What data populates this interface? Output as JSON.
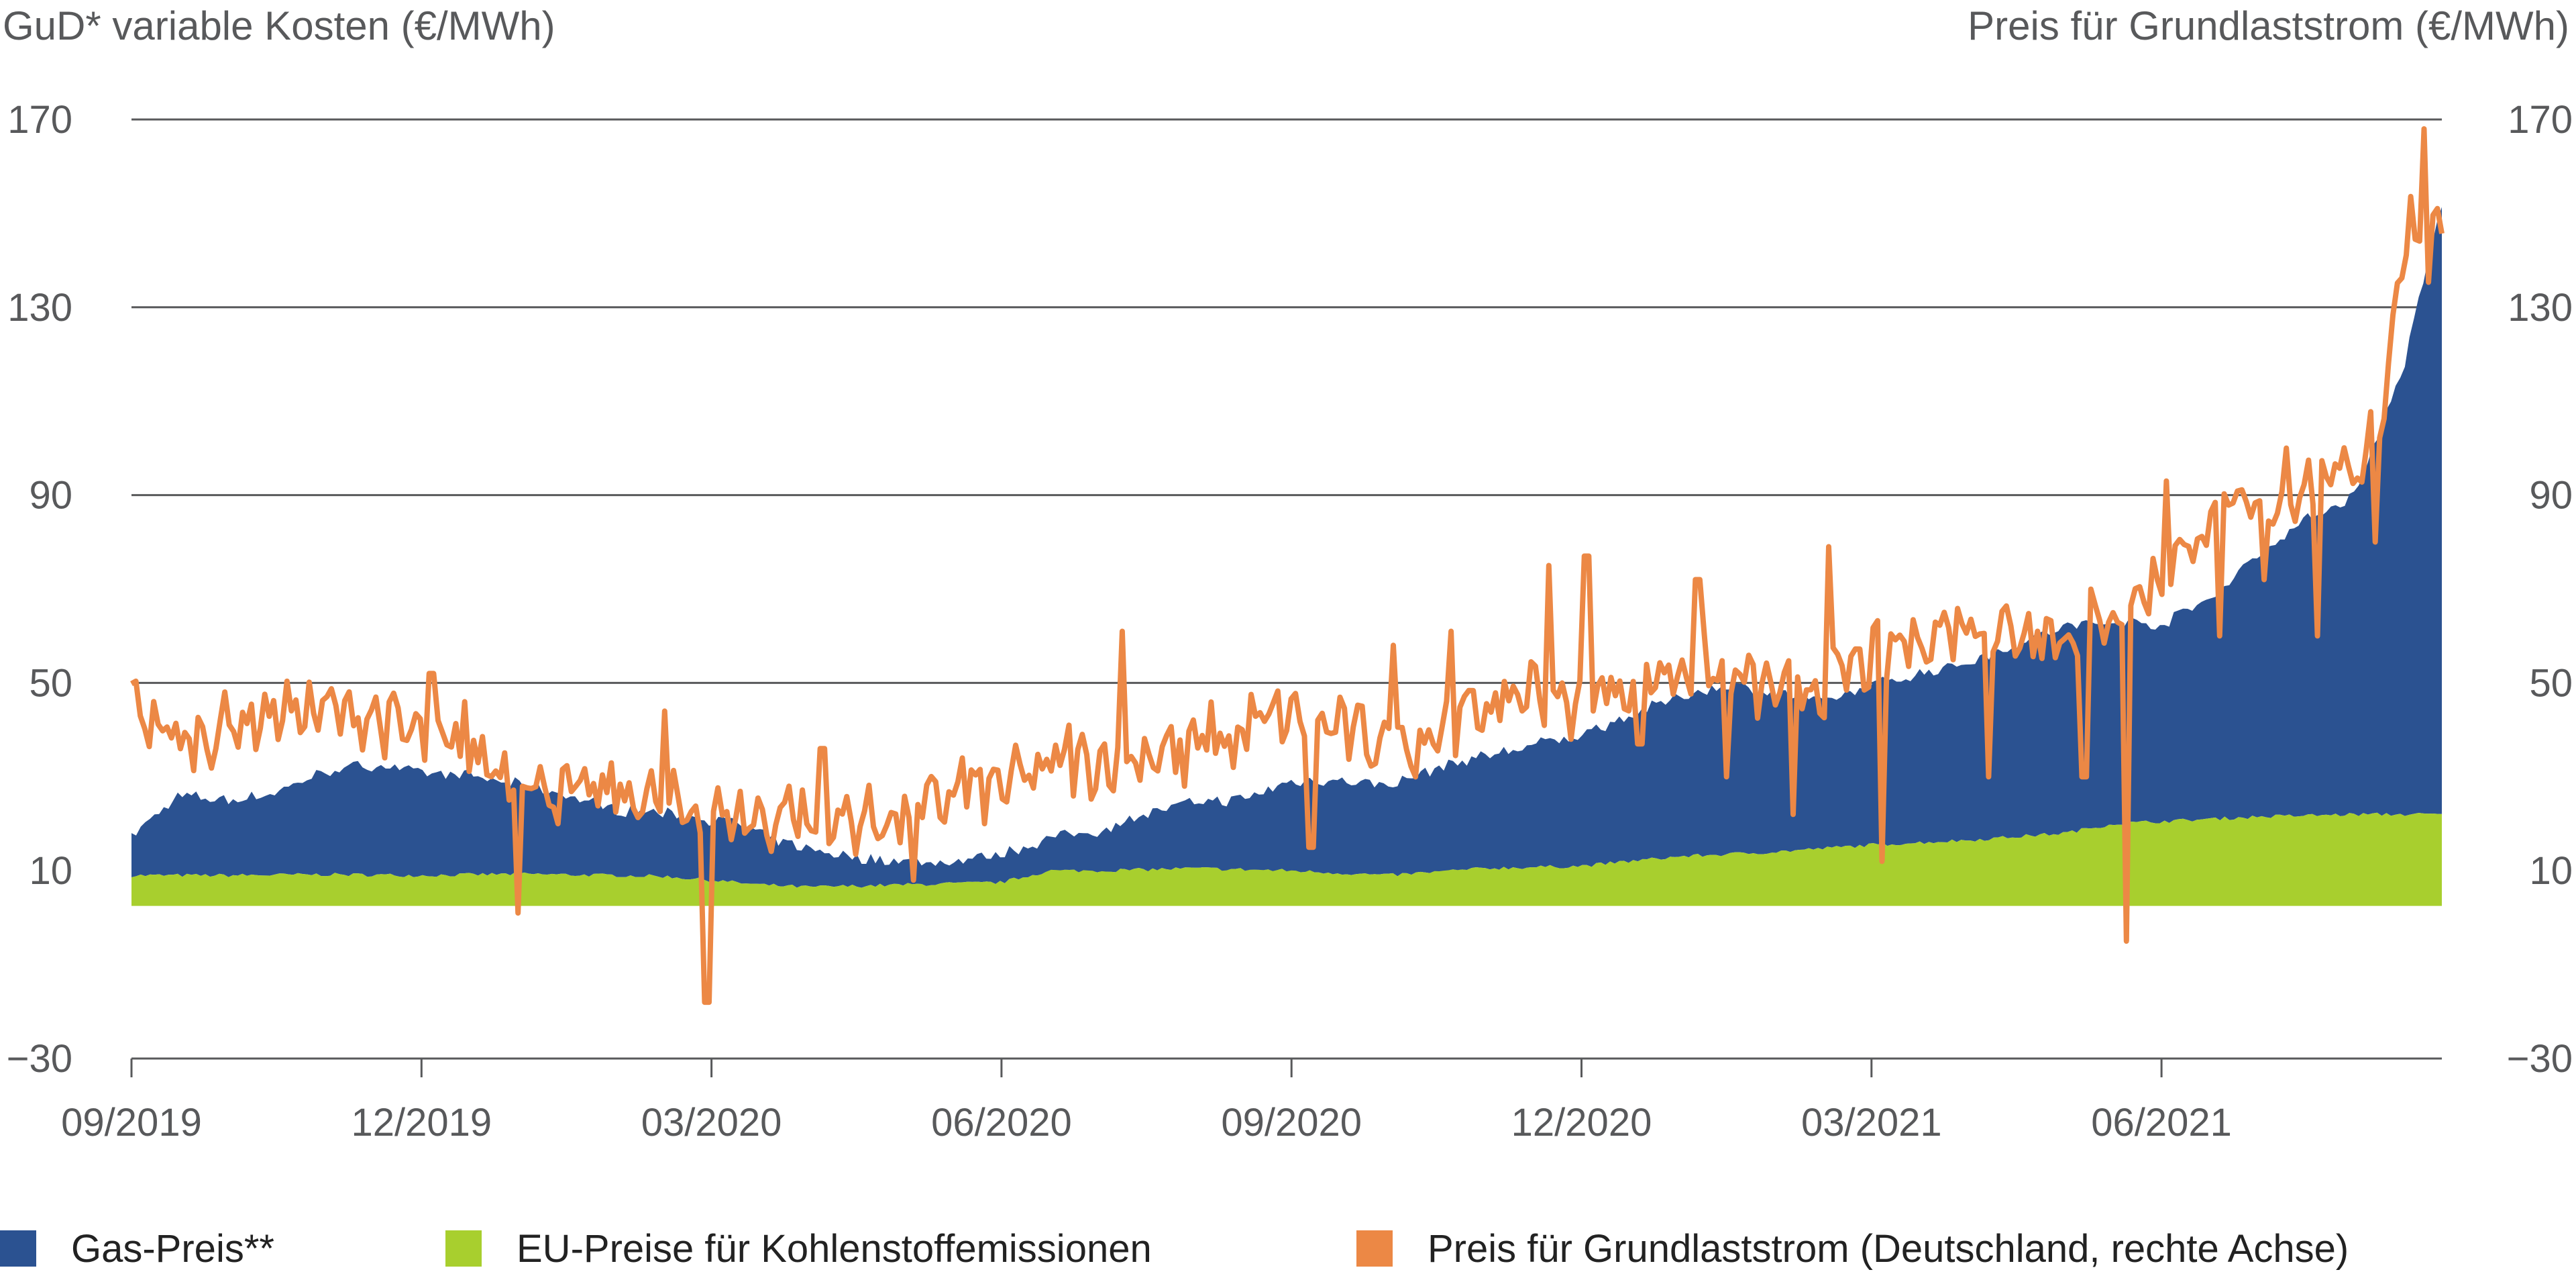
{
  "chart_data": {
    "type": "area",
    "title": "",
    "left_axis_title": "GuD* variable Kosten (€/MWh)",
    "right_axis_title": "Preis für Grundlaststrom (€/MWh)",
    "y_ticks": [
      170,
      130,
      90,
      50,
      10,
      -30
    ],
    "y_tick_labels": [
      "170",
      "130",
      "90",
      "50",
      "10",
      "−30"
    ],
    "ylim": [
      -30,
      170
    ],
    "x_ticks": [
      "09/2019",
      "12/2019",
      "03/2020",
      "06/2020",
      "09/2020",
      "12/2020",
      "03/2021",
      "06/2021"
    ],
    "x_tick_month_index": [
      0,
      3,
      6,
      9,
      12,
      15,
      18,
      21
    ],
    "x_range_months": [
      0,
      23.9
    ],
    "series": [
      {
        "name": "Gas-Preis**",
        "kind": "stacked-area",
        "color": "#2b5291",
        "description": "stacked on top of emission prices; points are [month index, value in €/MWh]",
        "points": [
          [
            0,
            8.5
          ],
          [
            0.5,
            17
          ],
          [
            1,
            16
          ],
          [
            1.5,
            17.5
          ],
          [
            2,
            22
          ],
          [
            2.5,
            23.5
          ],
          [
            3,
            22
          ],
          [
            3.5,
            21
          ],
          [
            4,
            19
          ],
          [
            4.5,
            17
          ],
          [
            5,
            14
          ],
          [
            5.5,
            13.5
          ],
          [
            6,
            13
          ],
          [
            6.3,
            12.5
          ],
          [
            6.6,
            10
          ],
          [
            7,
            8
          ],
          [
            7.5,
            6
          ],
          [
            8,
            5
          ],
          [
            8.5,
            4.5
          ],
          [
            9,
            6
          ],
          [
            9.5,
            7
          ],
          [
            10,
            8.5
          ],
          [
            10.5,
            12
          ],
          [
            11,
            14
          ],
          [
            11.5,
            15
          ],
          [
            12,
            19
          ],
          [
            12.5,
            20
          ],
          [
            13,
            19
          ],
          [
            13.5,
            22
          ],
          [
            14,
            24
          ],
          [
            14.5,
            26
          ],
          [
            15,
            28
          ],
          [
            15.5,
            31
          ],
          [
            16,
            34
          ],
          [
            16.5,
            36
          ],
          [
            17,
            34
          ],
          [
            17.5,
            31
          ],
          [
            18,
            34
          ],
          [
            18.5,
            36
          ],
          [
            19,
            38
          ],
          [
            19.5,
            41
          ],
          [
            20,
            44
          ],
          [
            20.5,
            43
          ],
          [
            21,
            42
          ],
          [
            21.5,
            47
          ],
          [
            22,
            56
          ],
          [
            22.5,
            63
          ],
          [
            23,
            68
          ],
          [
            23.5,
            95
          ],
          [
            23.9,
            130
          ]
        ]
      },
      {
        "name": "EU-Preise für Kohlenstoffemissionen",
        "kind": "base-area",
        "color": "#a8cf2e",
        "points": [
          [
            0,
            9
          ],
          [
            1,
            9
          ],
          [
            2,
            9.2
          ],
          [
            3,
            9
          ],
          [
            4,
            9.3
          ],
          [
            5,
            9
          ],
          [
            5.5,
            8.8
          ],
          [
            6,
            8
          ],
          [
            6.5,
            7
          ],
          [
            7,
            6.5
          ],
          [
            8,
            7
          ],
          [
            9,
            7.5
          ],
          [
            9.5,
            10
          ],
          [
            10,
            10
          ],
          [
            11,
            10.5
          ],
          [
            12,
            10
          ],
          [
            13,
            9
          ],
          [
            14,
            10.5
          ],
          [
            15,
            11
          ],
          [
            16,
            13
          ],
          [
            16.5,
            13.5
          ],
          [
            17,
            14
          ],
          [
            18,
            15.5
          ],
          [
            19,
            16.5
          ],
          [
            20,
            18
          ],
          [
            20.5,
            20
          ],
          [
            21,
            20.5
          ],
          [
            21.5,
            21
          ],
          [
            22,
            21.5
          ],
          [
            23,
            22
          ],
          [
            23.9,
            22
          ]
        ]
      },
      {
        "name": "Preis für Grundlaststrom (Deutschland, rechte Achse)",
        "kind": "line",
        "axis": "right",
        "color": "#ec8845",
        "daily_points": 520,
        "anchors": [
          [
            0,
            46
          ],
          [
            0.5,
            37
          ],
          [
            1,
            41
          ],
          [
            1.5,
            44
          ],
          [
            2,
            44
          ],
          [
            2.5,
            43
          ],
          [
            3,
            38
          ],
          [
            3.5,
            35
          ],
          [
            4,
            30
          ],
          [
            4.5,
            26
          ],
          [
            5,
            27
          ],
          [
            5.5,
            24
          ],
          [
            6,
            22
          ],
          [
            6.5,
            21
          ],
          [
            7,
            20
          ],
          [
            7.5,
            21
          ],
          [
            8,
            21
          ],
          [
            8.5,
            26
          ],
          [
            9,
            28
          ],
          [
            9.5,
            32
          ],
          [
            10,
            33
          ],
          [
            10.5,
            35
          ],
          [
            11,
            37
          ],
          [
            11.5,
            41
          ],
          [
            12,
            43
          ],
          [
            12.5,
            40
          ],
          [
            13,
            37
          ],
          [
            13.5,
            40
          ],
          [
            14,
            45
          ],
          [
            14.5,
            49
          ],
          [
            15,
            47
          ],
          [
            15.5,
            50
          ],
          [
            16,
            53
          ],
          [
            16.5,
            52
          ],
          [
            17,
            48
          ],
          [
            17.5,
            50
          ],
          [
            18,
            55
          ],
          [
            18.5,
            60
          ],
          [
            19,
            63
          ],
          [
            19.5,
            61
          ],
          [
            20,
            60
          ],
          [
            20.5,
            65
          ],
          [
            21,
            72
          ],
          [
            21.5,
            85
          ],
          [
            22,
            87
          ],
          [
            22.5,
            93
          ],
          [
            23,
            95
          ],
          [
            23.3,
            110
          ],
          [
            23.55,
            150
          ],
          [
            23.75,
            140
          ],
          [
            23.9,
            150
          ]
        ],
        "spikes": [
          [
            3.45,
            46
          ],
          [
            4.0,
            1
          ],
          [
            4.6,
            28
          ],
          [
            5.95,
            -18
          ],
          [
            7.15,
            36
          ],
          [
            8.6,
            34
          ],
          [
            9.7,
            41
          ],
          [
            10.25,
            61
          ],
          [
            11.4,
            32
          ],
          [
            13.05,
            58
          ],
          [
            13.65,
            61
          ],
          [
            14.15,
            42
          ],
          [
            14.65,
            75
          ],
          [
            15.05,
            77
          ],
          [
            16.2,
            72
          ],
          [
            17.55,
            79
          ],
          [
            18.6,
            55
          ],
          [
            19.7,
            61
          ],
          [
            21.05,
            93
          ],
          [
            22.3,
            100
          ],
          [
            23.7,
            168
          ],
          [
            3.1,
            52
          ],
          [
            5.5,
            44
          ],
          [
            6.8,
            28
          ],
          [
            8.1,
            8
          ],
          [
            10.9,
            28
          ],
          [
            12.2,
            15
          ],
          [
            13.3,
            30
          ],
          [
            14.9,
            38
          ],
          [
            15.6,
            37
          ],
          [
            16.5,
            30
          ],
          [
            17.2,
            22
          ],
          [
            18.1,
            12
          ],
          [
            19.2,
            30
          ],
          [
            20.2,
            30
          ],
          [
            20.65,
            -5
          ],
          [
            21.6,
            60
          ],
          [
            22.05,
            72
          ],
          [
            22.6,
            60
          ],
          [
            23.2,
            80
          ]
        ]
      }
    ]
  },
  "legend": {
    "items": [
      {
        "label": "Gas-Preis**",
        "color": "#2b5291"
      },
      {
        "label": "EU-Preise für Kohlenstoffemissionen",
        "color": "#a8cf2e"
      },
      {
        "label": "Preis für Grundlaststrom (Deutschland, rechte Achse)",
        "color": "#ec8845"
      }
    ]
  },
  "colors": {
    "gridline": "#58595b",
    "axis_text": "#58595b"
  }
}
